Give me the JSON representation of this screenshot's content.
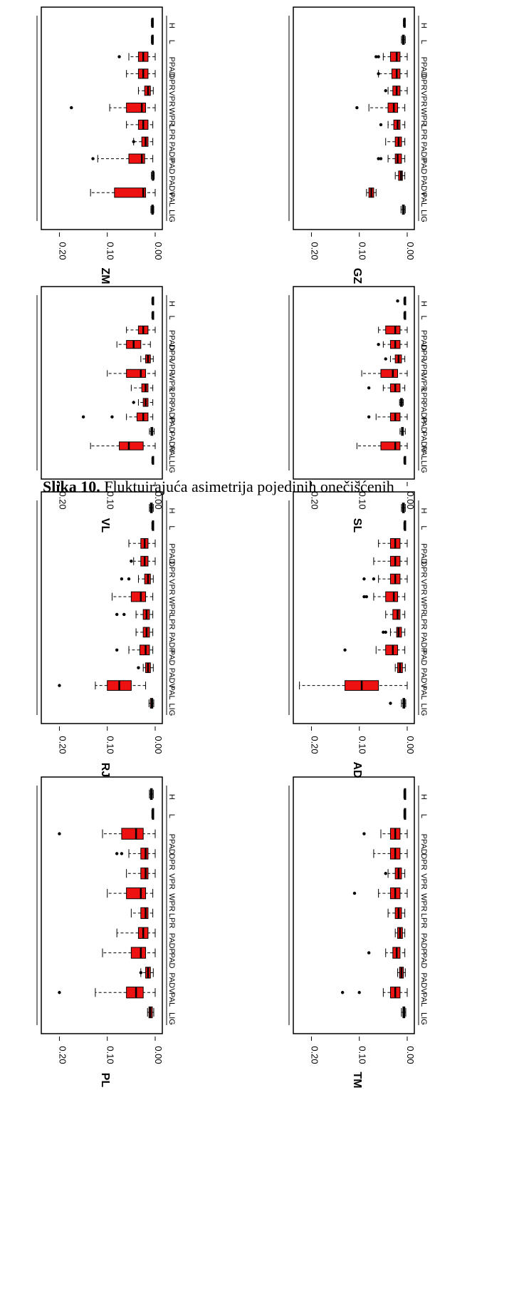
{
  "caption": {
    "label": "Slika 10.",
    "text": "Fluktuirajuća asimetrija pojedinih onečišćenih"
  },
  "chart_data": [
    {
      "type": "boxplot",
      "title": "ZM",
      "categories": [
        "LIG",
        "PAL",
        "PADV",
        "PAD",
        "PADP",
        "LPR",
        "WPR",
        "VPR",
        "DPR",
        "PPAD",
        "L",
        "H"
      ],
      "ylim": [
        0,
        0.22
      ],
      "ticks": [
        "0.00",
        "0.10",
        "0.20"
      ],
      "stats": [
        [
          0.003,
          0.005,
          0.006,
          0.007,
          0.009
        ],
        [
          0.0,
          0.02,
          0.025,
          0.085,
          0.135
        ],
        [
          0.002,
          0.004,
          0.005,
          0.006,
          0.008
        ],
        [
          0.005,
          0.022,
          0.028,
          0.055,
          0.12
        ],
        [
          0.005,
          0.015,
          0.02,
          0.028,
          0.045
        ],
        [
          0.005,
          0.015,
          0.025,
          0.035,
          0.06
        ],
        [
          0.0,
          0.02,
          0.028,
          0.06,
          0.095
        ],
        [
          0.004,
          0.01,
          0.015,
          0.022,
          0.035
        ],
        [
          0.0,
          0.015,
          0.025,
          0.035,
          0.06
        ],
        [
          0.0,
          0.015,
          0.025,
          0.035,
          0.055
        ],
        [
          0.004,
          0.005,
          0.006,
          0.007,
          0.008
        ],
        [
          0.004,
          0.005,
          0.006,
          0.007,
          0.008
        ]
      ],
      "outliers": [
        [],
        [],
        [],
        [
          0.13
        ],
        [
          0.045
        ],
        [],
        [
          0.175
        ],
        [],
        [],
        [
          0.075
        ],
        [],
        []
      ]
    },
    {
      "type": "boxplot",
      "title": "GZ",
      "categories": [
        "LIG",
        "PAL",
        "PADV",
        "PAD",
        "PADP",
        "LPR",
        "WPR",
        "VPR",
        "DPR",
        "PPAD",
        "L",
        "H"
      ],
      "ylim": [
        0,
        0.22
      ],
      "ticks": [
        "0.00",
        "0.10",
        "0.20"
      ],
      "stats": [
        [
          0.004,
          0.006,
          0.008,
          0.01,
          0.013
        ],
        [
          0.065,
          0.07,
          0.075,
          0.08,
          0.085
        ],
        [
          0.005,
          0.01,
          0.013,
          0.018,
          0.025
        ],
        [
          0.005,
          0.012,
          0.02,
          0.025,
          0.04
        ],
        [
          0.005,
          0.012,
          0.018,
          0.025,
          0.045
        ],
        [
          0.005,
          0.015,
          0.02,
          0.028,
          0.04
        ],
        [
          0.005,
          0.02,
          0.028,
          0.04,
          0.08
        ],
        [
          0.0,
          0.015,
          0.022,
          0.03,
          0.04
        ],
        [
          0.0,
          0.015,
          0.022,
          0.032,
          0.06
        ],
        [
          0.0,
          0.015,
          0.022,
          0.035,
          0.05
        ],
        [
          0.004,
          0.006,
          0.008,
          0.01,
          0.012
        ],
        [
          0.004,
          0.005,
          0.006,
          0.007,
          0.008
        ]
      ],
      "outliers": [
        [],
        [],
        [],
        [
          0.06,
          0.055
        ],
        [],
        [
          0.055
        ],
        [
          0.105
        ],
        [
          0.045
        ],
        [
          0.06
        ],
        [
          0.06,
          0.065
        ],
        [],
        []
      ]
    },
    {
      "type": "boxplot",
      "title": "VL",
      "categories": [
        "LIG",
        "PAL",
        "PADV",
        "PAD",
        "PADP",
        "LPR",
        "WPR",
        "VPR",
        "DPR",
        "PPAD",
        "L",
        "H"
      ],
      "ylim": [
        0,
        0.22
      ],
      "ticks": [
        "0.00",
        "0.10",
        "0.20"
      ],
      "stats": [
        [
          0.003,
          0.004,
          0.005,
          0.006,
          0.007
        ],
        [
          0.0,
          0.025,
          0.055,
          0.075,
          0.135
        ],
        [
          0.002,
          0.005,
          0.007,
          0.009,
          0.012
        ],
        [
          0.005,
          0.015,
          0.025,
          0.038,
          0.06
        ],
        [
          0.005,
          0.015,
          0.02,
          0.025,
          0.035
        ],
        [
          0.005,
          0.015,
          0.02,
          0.028,
          0.05
        ],
        [
          0.0,
          0.02,
          0.03,
          0.06,
          0.1
        ],
        [
          0.004,
          0.01,
          0.015,
          0.02,
          0.03
        ],
        [
          0.01,
          0.03,
          0.045,
          0.06,
          0.08
        ],
        [
          0.0,
          0.015,
          0.025,
          0.035,
          0.06
        ],
        [
          0.003,
          0.004,
          0.005,
          0.006,
          0.007
        ],
        [
          0.003,
          0.004,
          0.005,
          0.006,
          0.007
        ]
      ],
      "outliers": [
        [],
        [],
        [],
        [
          0.09,
          0.15
        ],
        [
          0.045
        ],
        [],
        [],
        [],
        [],
        [],
        [],
        []
      ]
    },
    {
      "type": "boxplot",
      "title": "SL",
      "categories": [
        "LIG",
        "PAL",
        "PADV",
        "PAD",
        "PADP",
        "LPR",
        "WPR",
        "VPR",
        "DPR",
        "PPAD",
        "L",
        "H"
      ],
      "ylim": [
        0,
        0.22
      ],
      "ticks": [
        "0.00",
        "0.10",
        "0.20"
      ],
      "stats": [
        [
          0.003,
          0.004,
          0.005,
          0.006,
          0.007
        ],
        [
          0.0,
          0.015,
          0.025,
          0.055,
          0.105
        ],
        [
          0.004,
          0.008,
          0.01,
          0.012,
          0.015
        ],
        [
          0.0,
          0.015,
          0.025,
          0.035,
          0.065
        ],
        [
          0.008,
          0.01,
          0.012,
          0.014,
          0.016
        ],
        [
          0.005,
          0.015,
          0.025,
          0.035,
          0.05
        ],
        [
          0.0,
          0.02,
          0.03,
          0.055,
          0.095
        ],
        [
          0.005,
          0.012,
          0.018,
          0.025,
          0.035
        ],
        [
          0.0,
          0.015,
          0.025,
          0.035,
          0.05
        ],
        [
          0.0,
          0.015,
          0.025,
          0.045,
          0.06
        ],
        [
          0.003,
          0.004,
          0.005,
          0.006,
          0.007
        ],
        [
          0.003,
          0.004,
          0.005,
          0.006,
          0.007
        ]
      ],
      "outliers": [
        [],
        [],
        [],
        [
          0.08
        ],
        [],
        [
          0.08
        ],
        [],
        [
          0.045
        ],
        [
          0.06
        ],
        [],
        [],
        [
          0.02
        ]
      ]
    },
    {
      "type": "boxplot",
      "title": "RJ",
      "categories": [
        "LIG",
        "PAL",
        "PADV",
        "PAD",
        "PADP",
        "LPR",
        "WPR",
        "VPR",
        "DPR",
        "PPAD",
        "L",
        "H"
      ],
      "ylim": [
        0,
        0.22
      ],
      "ticks": [
        "0.00",
        "0.10",
        "0.20"
      ],
      "stats": [
        [
          0.003,
          0.005,
          0.007,
          0.01,
          0.013
        ],
        [
          0.02,
          0.05,
          0.075,
          0.1,
          0.125
        ],
        [
          0.004,
          0.01,
          0.015,
          0.02,
          0.025
        ],
        [
          0.005,
          0.012,
          0.02,
          0.032,
          0.055
        ],
        [
          0.005,
          0.012,
          0.018,
          0.025,
          0.04
        ],
        [
          0.005,
          0.012,
          0.018,
          0.025,
          0.04
        ],
        [
          0.005,
          0.02,
          0.03,
          0.05,
          0.09
        ],
        [
          0.004,
          0.01,
          0.015,
          0.022,
          0.035
        ],
        [
          0.0,
          0.015,
          0.022,
          0.03,
          0.045
        ],
        [
          0.0,
          0.015,
          0.022,
          0.03,
          0.055
        ],
        [
          0.003,
          0.004,
          0.005,
          0.006,
          0.007
        ],
        [
          0.004,
          0.006,
          0.008,
          0.01,
          0.012
        ]
      ],
      "outliers": [
        [],
        [
          0.2
        ],
        [
          0.035
        ],
        [
          0.08
        ],
        [],
        [
          0.065,
          0.08
        ],
        [],
        [
          0.055,
          0.07
        ],
        [
          0.05
        ],
        [],
        [],
        []
      ]
    },
    {
      "type": "boxplot",
      "title": "AD",
      "categories": [
        "LIG",
        "PAL",
        "PADV",
        "PAD",
        "PADP",
        "LPR",
        "WPR",
        "VPR",
        "DPR",
        "PPAD",
        "L",
        "H"
      ],
      "ylim": [
        0,
        0.22
      ],
      "ticks": [
        "0.00",
        "0.10",
        "0.20"
      ],
      "stats": [
        [
          0.003,
          0.005,
          0.007,
          0.009,
          0.012
        ],
        [
          0.0,
          0.06,
          0.095,
          0.13,
          0.225
        ],
        [
          0.004,
          0.01,
          0.015,
          0.02,
          0.025
        ],
        [
          0.005,
          0.02,
          0.03,
          0.045,
          0.065
        ],
        [
          0.005,
          0.012,
          0.018,
          0.022,
          0.035
        ],
        [
          0.005,
          0.015,
          0.02,
          0.03,
          0.045
        ],
        [
          0.005,
          0.02,
          0.028,
          0.045,
          0.07
        ],
        [
          0.0,
          0.015,
          0.025,
          0.035,
          0.06
        ],
        [
          0.0,
          0.015,
          0.025,
          0.035,
          0.07
        ],
        [
          0.0,
          0.015,
          0.025,
          0.035,
          0.06
        ],
        [
          0.003,
          0.004,
          0.005,
          0.006,
          0.007
        ],
        [
          0.004,
          0.006,
          0.008,
          0.01,
          0.012
        ]
      ],
      "outliers": [
        [
          0.035
        ],
        [],
        [],
        [
          0.13
        ],
        [
          0.045,
          0.05
        ],
        [],
        [
          0.085,
          0.09
        ],
        [
          0.07,
          0.09
        ],
        [],
        [],
        [],
        []
      ]
    },
    {
      "type": "boxplot",
      "title": "PL",
      "categories": [
        "LIG",
        "PAL",
        "PADV",
        "PAD",
        "PADP",
        "LPR",
        "WPR",
        "VPR",
        "DPR",
        "PPAD",
        "L",
        "H"
      ],
      "ylim": [
        0,
        0.22
      ],
      "ticks": [
        "0.00",
        "0.10",
        "0.20"
      ],
      "stats": [
        [
          0.003,
          0.006,
          0.01,
          0.013,
          0.016
        ],
        [
          0.0,
          0.025,
          0.04,
          0.06,
          0.125
        ],
        [
          0.004,
          0.01,
          0.015,
          0.02,
          0.03
        ],
        [
          0.0,
          0.02,
          0.03,
          0.05,
          0.11
        ],
        [
          0.0,
          0.015,
          0.025,
          0.035,
          0.08
        ],
        [
          0.005,
          0.015,
          0.02,
          0.03,
          0.05
        ],
        [
          0.005,
          0.02,
          0.03,
          0.06,
          0.1
        ],
        [
          0.0,
          0.015,
          0.02,
          0.03,
          0.06
        ],
        [
          0.0,
          0.015,
          0.02,
          0.03,
          0.055
        ],
        [
          0.0,
          0.025,
          0.04,
          0.07,
          0.11
        ],
        [
          0.003,
          0.004,
          0.005,
          0.006,
          0.007
        ],
        [
          0.004,
          0.006,
          0.008,
          0.01,
          0.012
        ]
      ],
      "outliers": [
        [],
        [
          0.2
        ],
        [
          0.03
        ],
        [],
        [],
        [],
        [],
        [],
        [
          0.07,
          0.08
        ],
        [
          0.2
        ],
        [],
        []
      ]
    },
    {
      "type": "boxplot",
      "title": "TM",
      "categories": [
        "LIG",
        "PAL",
        "PADV",
        "PAD",
        "PADP",
        "LPR",
        "WPR",
        "VPR",
        "DPR",
        "PPAD",
        "L",
        "H"
      ],
      "ylim": [
        0,
        0.22
      ],
      "ticks": [
        "0.00",
        "0.10",
        "0.20"
      ],
      "stats": [
        [
          0.003,
          0.005,
          0.007,
          0.009,
          0.012
        ],
        [
          0.0,
          0.015,
          0.025,
          0.035,
          0.05
        ],
        [
          0.004,
          0.008,
          0.012,
          0.016,
          0.02
        ],
        [
          0.005,
          0.015,
          0.022,
          0.03,
          0.045
        ],
        [
          0.005,
          0.01,
          0.015,
          0.02,
          0.025
        ],
        [
          0.005,
          0.012,
          0.018,
          0.025,
          0.04
        ],
        [
          0.0,
          0.015,
          0.025,
          0.035,
          0.06
        ],
        [
          0.005,
          0.012,
          0.018,
          0.025,
          0.04
        ],
        [
          0.0,
          0.015,
          0.025,
          0.035,
          0.07
        ],
        [
          0.0,
          0.015,
          0.025,
          0.035,
          0.055
        ],
        [
          0.003,
          0.004,
          0.005,
          0.006,
          0.007
        ],
        [
          0.003,
          0.004,
          0.005,
          0.006,
          0.007
        ]
      ],
      "outliers": [
        [],
        [
          0.1,
          0.135
        ],
        [],
        [
          0.08
        ],
        [],
        [],
        [
          0.11
        ],
        [
          0.045
        ],
        [],
        [
          0.09
        ],
        [],
        []
      ]
    }
  ]
}
